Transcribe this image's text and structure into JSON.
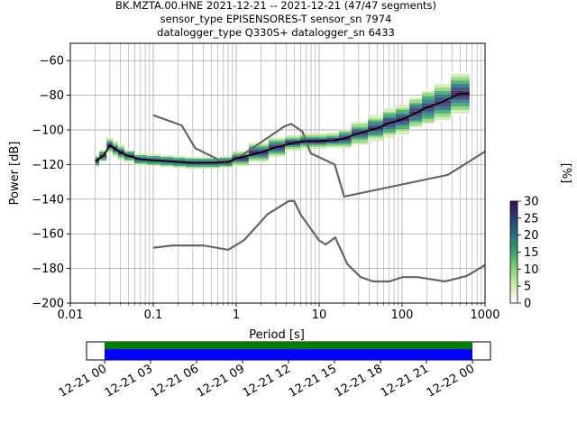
{
  "title": {
    "line1": "BK.MZTA.00.HNE   2021-12-21 -- 2021-12-21  (47/47 segments)",
    "line2": "sensor_type EPISENSORES-T sensor_sn 7974",
    "line3": "datalogger_type Q330S+ datalogger_sn 6433"
  },
  "colorbar": {
    "label": "[%]",
    "ticks": [
      "0",
      "5",
      "10",
      "15",
      "20",
      "25",
      "30"
    ],
    "range": [
      0,
      30
    ],
    "colors": [
      "#ffffff",
      "#d4ecb0",
      "#8dd57a",
      "#35a669",
      "#2a6f7e",
      "#2d3c78",
      "#3a0e4f"
    ]
  },
  "timeline": {
    "ticks": [
      "12-21 00",
      "12-21 03",
      "12-21 06",
      "12-21 09",
      "12-21 12",
      "12-21 15",
      "12-21 18",
      "12-21 21",
      "12-22 00"
    ],
    "coverage_colors": {
      "top": "#008000",
      "bottom": "#0000ff"
    },
    "coverage": [
      0.0,
      1.0
    ]
  },
  "chart_data": {
    "type": "line",
    "xlabel": "Period [s]",
    "ylabel": "Power [dB]",
    "xscale": "log",
    "xlim": [
      0.01,
      1000
    ],
    "ylim": [
      -200,
      -50
    ],
    "xticks": [
      "0.01",
      "0.1",
      "1",
      "10",
      "100",
      "1000"
    ],
    "xtick_values": [
      0.01,
      0.1,
      1,
      10,
      100,
      1000
    ],
    "yticks": [
      "−200",
      "−180",
      "−160",
      "−140",
      "−120",
      "−100",
      "−80",
      "−60"
    ],
    "ytick_values": [
      -200,
      -180,
      -160,
      -140,
      -120,
      -100,
      -80,
      -60
    ],
    "grid": true,
    "line_colors": {
      "median": "#000000",
      "noise_models": "#666666"
    },
    "median": {
      "x": [
        0.02,
        0.025,
        0.03,
        0.035,
        0.04,
        0.05,
        0.07,
        0.1,
        0.15,
        0.2,
        0.3,
        0.5,
        0.8,
        1,
        2,
        3,
        5,
        7,
        10,
        15,
        20,
        30,
        50,
        70,
        100,
        150,
        200,
        300,
        500,
        650
      ],
      "y": [
        -118,
        -115,
        -109,
        -111,
        -113,
        -115,
        -117,
        -117.5,
        -118,
        -118.5,
        -119,
        -119,
        -118.5,
        -116.5,
        -113,
        -110,
        -107.5,
        -106.5,
        -106.5,
        -106,
        -105,
        -102,
        -99,
        -96,
        -94,
        -90,
        -87,
        -84,
        -79,
        -79
      ]
    },
    "nhnm": {
      "x": [
        0.1,
        0.22,
        0.32,
        0.8,
        3.8,
        4.6,
        6.3,
        7.9,
        15.4,
        20,
        354.8,
        1000
      ],
      "y": [
        -91.5,
        -97.4,
        -110.5,
        -120,
        -98,
        -96.5,
        -101,
        -113.5,
        -120,
        -138.5,
        -126,
        -112.5
      ]
    },
    "nlnm": {
      "x": [
        0.1,
        0.17,
        0.4,
        0.8,
        1.24,
        2.4,
        4.3,
        5,
        6,
        10,
        12,
        15.6,
        21.9,
        31.6,
        45,
        70,
        101,
        154,
        328,
        600,
        1000
      ],
      "y": [
        -168,
        -166.7,
        -166.7,
        -169.2,
        -163.7,
        -148.6,
        -141.1,
        -141.1,
        -149,
        -163.8,
        -166.2,
        -162.1,
        -177.5,
        -185,
        -187.5,
        -187.5,
        -185,
        -185,
        -187.5,
        -184.4,
        -178
      ]
    },
    "density": {
      "x": [
        0.02,
        0.025,
        0.03,
        0.035,
        0.04,
        0.05,
        0.07,
        0.1,
        0.15,
        0.2,
        0.3,
        0.5,
        0.8,
        1,
        2,
        3,
        5,
        7,
        10,
        15,
        20,
        30,
        50,
        70,
        100,
        150,
        200,
        300,
        500,
        650
      ],
      "spread_db": [
        3,
        3,
        4,
        4,
        4,
        3,
        3,
        3,
        3,
        3,
        3,
        3,
        3,
        4,
        5,
        5,
        4,
        4,
        4,
        4,
        5,
        6,
        7,
        8,
        8,
        9,
        10,
        11,
        12,
        12
      ],
      "peak_percent": 30
    }
  }
}
